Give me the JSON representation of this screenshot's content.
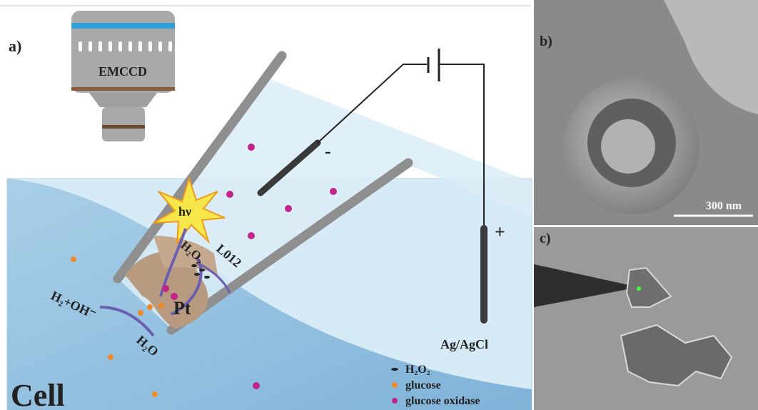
{
  "panels": {
    "a": {
      "label": "a)",
      "camera": "EMCCD",
      "emission": "hν",
      "probe": "L012",
      "peroxide": "H₂O₂",
      "electrode_tip": "Pt",
      "products": "H₂+OH⁻",
      "water": "H₂O",
      "cell": "Cell",
      "negative": "-",
      "positive": "+",
      "reference": "Ag/AgCl",
      "legend": [
        "H₂O₂",
        "glucose",
        "glucose oxidase"
      ]
    },
    "b": {
      "label": "b)",
      "scale_bar": "300 nm"
    },
    "c": {
      "label": "c)"
    }
  }
}
